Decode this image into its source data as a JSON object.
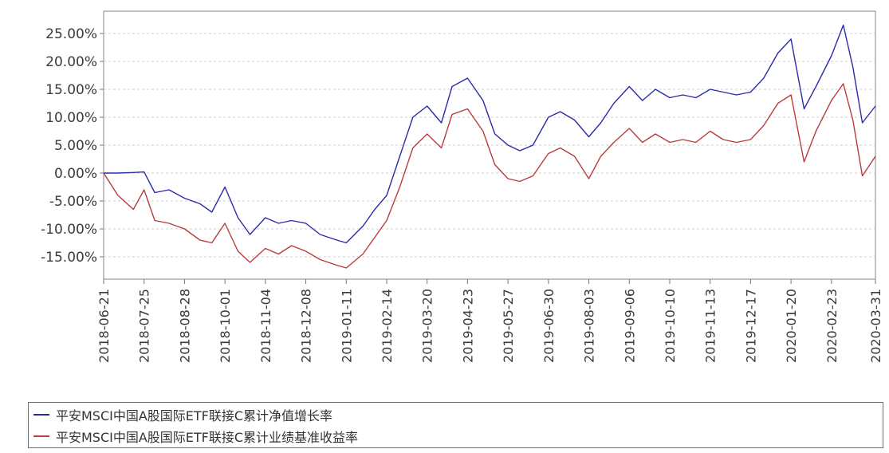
{
  "chart_data": {
    "type": "line",
    "title": "",
    "xlabel": "",
    "ylabel": "",
    "ylim": [
      -19,
      29
    ],
    "yticks": [
      -15,
      -10,
      -5,
      0,
      5,
      10,
      15,
      20,
      25
    ],
    "ytick_labels": [
      "-15.00%",
      "-10.00%",
      "-5.00%",
      "0.00%",
      "5.00%",
      "10.00%",
      "15.00%",
      "20.00%",
      "25.00%"
    ],
    "xtick_labels": [
      "2018-06-21",
      "2018-07-25",
      "2018-08-28",
      "2018-10-01",
      "2018-11-04",
      "2018-12-08",
      "2019-01-11",
      "2019-02-14",
      "2019-03-20",
      "2019-04-23",
      "2019-05-27",
      "2019-06-30",
      "2019-08-03",
      "2019-09-06",
      "2019-10-10",
      "2019-11-13",
      "2019-12-17",
      "2020-01-20",
      "2020-02-23",
      "2020-03-31"
    ],
    "grid": true,
    "legend_position": "bottom",
    "series": [
      {
        "name": "平安MSCI中国A股国际ETF联接C累计净值增长率",
        "color": "#2b2ba8",
        "x": [
          "2018-06-21",
          "2018-07-03",
          "2018-07-16",
          "2018-07-25",
          "2018-08-03",
          "2018-08-15",
          "2018-08-28",
          "2018-09-10",
          "2018-09-20",
          "2018-10-01",
          "2018-10-12",
          "2018-10-22",
          "2018-11-04",
          "2018-11-15",
          "2018-11-26",
          "2018-12-08",
          "2018-12-20",
          "2019-01-03",
          "2019-01-11",
          "2019-01-25",
          "2019-02-04",
          "2019-02-14",
          "2019-02-25",
          "2019-03-08",
          "2019-03-20",
          "2019-04-01",
          "2019-04-10",
          "2019-04-23",
          "2019-05-06",
          "2019-05-16",
          "2019-05-27",
          "2019-06-06",
          "2019-06-17",
          "2019-06-30",
          "2019-07-10",
          "2019-07-22",
          "2019-08-03",
          "2019-08-13",
          "2019-08-24",
          "2019-09-06",
          "2019-09-17",
          "2019-09-28",
          "2019-10-10",
          "2019-10-21",
          "2019-11-01",
          "2019-11-13",
          "2019-11-24",
          "2019-12-05",
          "2019-12-17",
          "2019-12-28",
          "2020-01-09",
          "2020-01-20",
          "2020-01-31",
          "2020-02-10",
          "2020-02-23",
          "2020-03-04",
          "2020-03-12",
          "2020-03-20",
          "2020-03-31"
        ],
        "values": [
          0.0,
          0.0,
          0.1,
          0.2,
          -3.5,
          -3.0,
          -4.5,
          -5.5,
          -7.0,
          -2.5,
          -8.0,
          -11.0,
          -8.0,
          -9.0,
          -8.5,
          -9.0,
          -11.0,
          -12.0,
          -12.5,
          -9.5,
          -6.5,
          -4.0,
          3.0,
          10.0,
          12.0,
          9.0,
          15.5,
          17.0,
          13.0,
          7.0,
          5.0,
          4.0,
          5.0,
          10.0,
          11.0,
          9.5,
          6.5,
          9.0,
          12.5,
          15.5,
          13.0,
          15.0,
          13.5,
          14.0,
          13.5,
          15.0,
          14.5,
          14.0,
          14.5,
          17.0,
          21.5,
          24.0,
          11.5,
          15.5,
          21.0,
          26.5,
          19.0,
          9.0,
          12.0
        ]
      },
      {
        "name": "平安MSCI中国A股国际ETF联接C累计业绩基准收益率",
        "color": "#b83c3c",
        "x": [
          "2018-06-21",
          "2018-07-03",
          "2018-07-16",
          "2018-07-25",
          "2018-08-03",
          "2018-08-15",
          "2018-08-28",
          "2018-09-10",
          "2018-09-20",
          "2018-10-01",
          "2018-10-12",
          "2018-10-22",
          "2018-11-04",
          "2018-11-15",
          "2018-11-26",
          "2018-12-08",
          "2018-12-20",
          "2019-01-03",
          "2019-01-11",
          "2019-01-25",
          "2019-02-04",
          "2019-02-14",
          "2019-02-25",
          "2019-03-08",
          "2019-03-20",
          "2019-04-01",
          "2019-04-10",
          "2019-04-23",
          "2019-05-06",
          "2019-05-16",
          "2019-05-27",
          "2019-06-06",
          "2019-06-17",
          "2019-06-30",
          "2019-07-10",
          "2019-07-22",
          "2019-08-03",
          "2019-08-13",
          "2019-08-24",
          "2019-09-06",
          "2019-09-17",
          "2019-09-28",
          "2019-10-10",
          "2019-10-21",
          "2019-11-01",
          "2019-11-13",
          "2019-11-24",
          "2019-12-05",
          "2019-12-17",
          "2019-12-28",
          "2020-01-09",
          "2020-01-20",
          "2020-01-31",
          "2020-02-10",
          "2020-02-23",
          "2020-03-04",
          "2020-03-12",
          "2020-03-20",
          "2020-03-31"
        ],
        "values": [
          0.0,
          -4.0,
          -6.5,
          -3.0,
          -8.5,
          -9.0,
          -10.0,
          -12.0,
          -12.5,
          -9.0,
          -14.0,
          -16.0,
          -13.5,
          -14.5,
          -13.0,
          -14.0,
          -15.5,
          -16.5,
          -17.0,
          -14.5,
          -11.5,
          -8.5,
          -2.5,
          4.5,
          7.0,
          4.5,
          10.5,
          11.5,
          7.5,
          1.5,
          -1.0,
          -1.5,
          -0.5,
          3.5,
          4.5,
          3.0,
          -1.0,
          3.0,
          5.5,
          8.0,
          5.5,
          7.0,
          5.5,
          6.0,
          5.5,
          7.5,
          6.0,
          5.5,
          6.0,
          8.5,
          12.5,
          14.0,
          2.0,
          7.5,
          13.0,
          16.0,
          9.5,
          -0.5,
          3.0
        ]
      }
    ]
  }
}
